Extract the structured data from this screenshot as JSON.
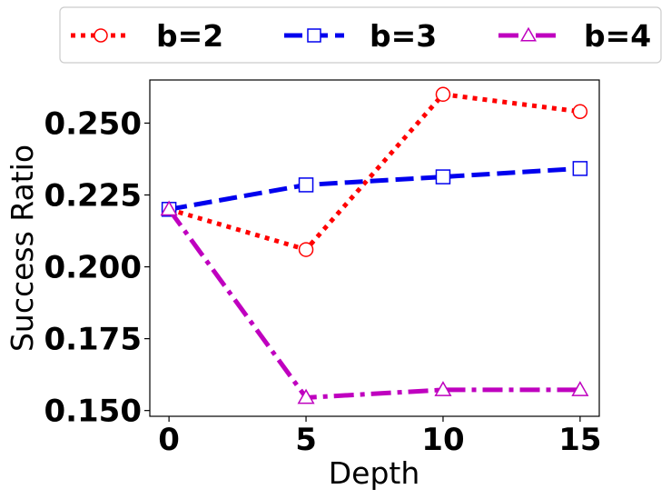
{
  "chart_data": {
    "type": "line",
    "title": "",
    "xlabel": "Depth",
    "ylabel": "Success Ratio",
    "x": [
      0,
      5,
      10,
      15
    ],
    "xlim": [
      -0.7,
      15.7
    ],
    "ylim": [
      0.148,
      0.265
    ],
    "xticks": [
      0,
      5,
      10,
      15
    ],
    "xtick_labels": [
      "0",
      "5",
      "10",
      "15"
    ],
    "yticks": [
      0.15,
      0.175,
      0.2,
      0.225,
      0.25
    ],
    "ytick_labels": [
      "0.150",
      "0.175",
      "0.200",
      "0.225",
      "0.250"
    ],
    "grid": false,
    "legend_position": "top-center",
    "series": [
      {
        "name": "b=2",
        "values": [
          0.22,
          0.206,
          0.26,
          0.254
        ],
        "color": "#ff0000",
        "line_style": "dotted",
        "marker": "circle"
      },
      {
        "name": "b=3",
        "values": [
          0.22,
          0.2285,
          0.2313,
          0.2342
        ],
        "color": "#0000ee",
        "line_style": "dashed",
        "marker": "square"
      },
      {
        "name": "b=4",
        "values": [
          0.22,
          0.1545,
          0.1572,
          0.1572
        ],
        "color": "#bf00bf",
        "line_style": "dashdot",
        "marker": "triangle"
      }
    ]
  }
}
